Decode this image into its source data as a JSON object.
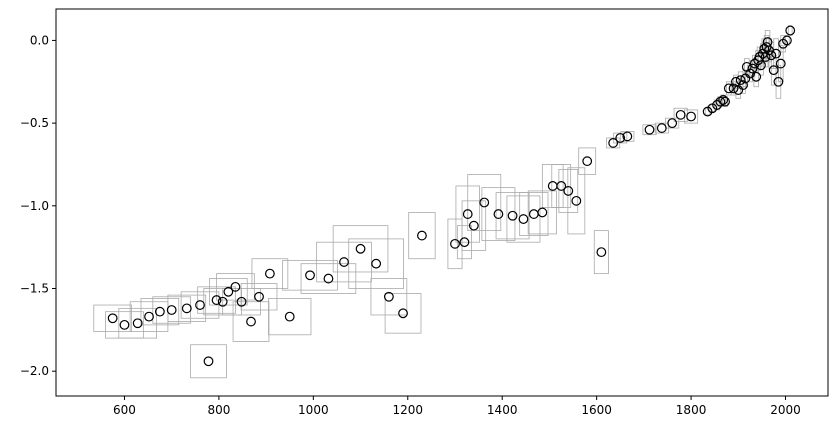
{
  "chart_data": {
    "type": "scatter",
    "title": "",
    "xlabel": "",
    "ylabel": "",
    "xlim": [
      455,
      2090
    ],
    "ylim": [
      -2.15,
      0.19
    ],
    "grid": false,
    "legend": "none",
    "x_ticks": [
      600,
      800,
      1000,
      1200,
      1400,
      1600,
      1800,
      2000
    ],
    "x_tick_labels": [
      "600",
      "800",
      "1000",
      "1200",
      "1400",
      "1600",
      "1800",
      "2000"
    ],
    "y_ticks": [
      0.0,
      -0.5,
      -1.0,
      -1.5,
      -2.0
    ],
    "y_tick_labels": [
      "0.0",
      "−0.5",
      "−1.0",
      "−1.5",
      "−2.0"
    ],
    "marker_color": "#000000",
    "box_color": "#aaaaaa",
    "points": [
      {
        "x": 575,
        "y": -1.68,
        "xerr": 40,
        "yerr": 0.08
      },
      {
        "x": 600,
        "y": -1.72,
        "xerr": 40,
        "yerr": 0.08
      },
      {
        "x": 628,
        "y": -1.71,
        "xerr": 40,
        "yerr": 0.09
      },
      {
        "x": 652,
        "y": -1.67,
        "xerr": 40,
        "yerr": 0.09
      },
      {
        "x": 675,
        "y": -1.64,
        "xerr": 40,
        "yerr": 0.08
      },
      {
        "x": 700,
        "y": -1.63,
        "xerr": 40,
        "yerr": 0.08
      },
      {
        "x": 732,
        "y": -1.62,
        "xerr": 40,
        "yerr": 0.08
      },
      {
        "x": 760,
        "y": -1.6,
        "xerr": 40,
        "yerr": 0.08
      },
      {
        "x": 778,
        "y": -1.94,
        "xerr": 38,
        "yerr": 0.1
      },
      {
        "x": 795,
        "y": -1.57,
        "xerr": 40,
        "yerr": 0.08
      },
      {
        "x": 808,
        "y": -1.58,
        "xerr": 40,
        "yerr": 0.08
      },
      {
        "x": 820,
        "y": -1.52,
        "xerr": 40,
        "yerr": 0.08
      },
      {
        "x": 835,
        "y": -1.49,
        "xerr": 40,
        "yerr": 0.08
      },
      {
        "x": 848,
        "y": -1.58,
        "xerr": 40,
        "yerr": 0.08
      },
      {
        "x": 868,
        "y": -1.7,
        "xerr": 38,
        "yerr": 0.12
      },
      {
        "x": 885,
        "y": -1.55,
        "xerr": 38,
        "yerr": 0.08
      },
      {
        "x": 908,
        "y": -1.41,
        "xerr": 38,
        "yerr": 0.09
      },
      {
        "x": 950,
        "y": -1.67,
        "xerr": 45,
        "yerr": 0.11
      },
      {
        "x": 993,
        "y": -1.42,
        "xerr": 58,
        "yerr": 0.09
      },
      {
        "x": 1032,
        "y": -1.44,
        "xerr": 58,
        "yerr": 0.09
      },
      {
        "x": 1065,
        "y": -1.34,
        "xerr": 58,
        "yerr": 0.12
      },
      {
        "x": 1100,
        "y": -1.26,
        "xerr": 58,
        "yerr": 0.14
      },
      {
        "x": 1133,
        "y": -1.35,
        "xerr": 58,
        "yerr": 0.15
      },
      {
        "x": 1160,
        "y": -1.55,
        "xerr": 38,
        "yerr": 0.11
      },
      {
        "x": 1190,
        "y": -1.65,
        "xerr": 38,
        "yerr": 0.12
      },
      {
        "x": 1230,
        "y": -1.18,
        "xerr": 28,
        "yerr": 0.14
      },
      {
        "x": 1300,
        "y": -1.23,
        "xerr": 15,
        "yerr": 0.15
      },
      {
        "x": 1320,
        "y": -1.22,
        "xerr": 15,
        "yerr": 0.1
      },
      {
        "x": 1327,
        "y": -1.05,
        "xerr": 25,
        "yerr": 0.17
      },
      {
        "x": 1340,
        "y": -1.12,
        "xerr": 25,
        "yerr": 0.15
      },
      {
        "x": 1362,
        "y": -0.98,
        "xerr": 35,
        "yerr": 0.17
      },
      {
        "x": 1392,
        "y": -1.05,
        "xerr": 35,
        "yerr": 0.16
      },
      {
        "x": 1422,
        "y": -1.06,
        "xerr": 35,
        "yerr": 0.14
      },
      {
        "x": 1445,
        "y": -1.08,
        "xerr": 35,
        "yerr": 0.14
      },
      {
        "x": 1467,
        "y": -1.05,
        "xerr": 30,
        "yerr": 0.13
      },
      {
        "x": 1485,
        "y": -1.04,
        "xerr": 30,
        "yerr": 0.13
      },
      {
        "x": 1507,
        "y": -0.88,
        "xerr": 22,
        "yerr": 0.13
      },
      {
        "x": 1525,
        "y": -0.88,
        "xerr": 20,
        "yerr": 0.13
      },
      {
        "x": 1540,
        "y": -0.91,
        "xerr": 20,
        "yerr": 0.13
      },
      {
        "x": 1557,
        "y": -0.97,
        "xerr": 18,
        "yerr": 0.2
      },
      {
        "x": 1580,
        "y": -0.73,
        "xerr": 18,
        "yerr": 0.08
      },
      {
        "x": 1610,
        "y": -1.28,
        "xerr": 15,
        "yerr": 0.13
      },
      {
        "x": 1635,
        "y": -0.62,
        "xerr": 14,
        "yerr": 0.03
      },
      {
        "x": 1650,
        "y": -0.59,
        "xerr": 14,
        "yerr": 0.03
      },
      {
        "x": 1665,
        "y": -0.58,
        "xerr": 14,
        "yerr": 0.03
      },
      {
        "x": 1712,
        "y": -0.54,
        "xerr": 14,
        "yerr": 0.03
      },
      {
        "x": 1738,
        "y": -0.53,
        "xerr": 14,
        "yerr": 0.03
      },
      {
        "x": 1760,
        "y": -0.5,
        "xerr": 14,
        "yerr": 0.03
      },
      {
        "x": 1778,
        "y": -0.45,
        "xerr": 14,
        "yerr": 0.04
      },
      {
        "x": 1800,
        "y": -0.46,
        "xerr": 14,
        "yerr": 0.04
      },
      {
        "x": 1835,
        "y": -0.43,
        "xerr": 5,
        "yerr": 0.02
      },
      {
        "x": 1845,
        "y": -0.41,
        "xerr": 5,
        "yerr": 0.02
      },
      {
        "x": 1855,
        "y": -0.39,
        "xerr": 5,
        "yerr": 0.03
      },
      {
        "x": 1862,
        "y": -0.37,
        "xerr": 5,
        "yerr": 0.03
      },
      {
        "x": 1868,
        "y": -0.36,
        "xerr": 5,
        "yerr": 0.03
      },
      {
        "x": 1872,
        "y": -0.37,
        "xerr": 5,
        "yerr": 0.03
      },
      {
        "x": 1880,
        "y": -0.29,
        "xerr": 5,
        "yerr": 0.04
      },
      {
        "x": 1890,
        "y": -0.29,
        "xerr": 5,
        "yerr": 0.04
      },
      {
        "x": 1895,
        "y": -0.25,
        "xerr": 5,
        "yerr": 0.04
      },
      {
        "x": 1900,
        "y": -0.3,
        "xerr": 5,
        "yerr": 0.05
      },
      {
        "x": 1905,
        "y": -0.24,
        "xerr": 5,
        "yerr": 0.05
      },
      {
        "x": 1910,
        "y": -0.27,
        "xerr": 5,
        "yerr": 0.05
      },
      {
        "x": 1915,
        "y": -0.23,
        "xerr": 5,
        "yerr": 0.05
      },
      {
        "x": 1918,
        "y": -0.16,
        "xerr": 5,
        "yerr": 0.05
      },
      {
        "x": 1925,
        "y": -0.2,
        "xerr": 5,
        "yerr": 0.05
      },
      {
        "x": 1930,
        "y": -0.17,
        "xerr": 5,
        "yerr": 0.05
      },
      {
        "x": 1935,
        "y": -0.14,
        "xerr": 5,
        "yerr": 0.05
      },
      {
        "x": 1938,
        "y": -0.22,
        "xerr": 5,
        "yerr": 0.06
      },
      {
        "x": 1942,
        "y": -0.12,
        "xerr": 5,
        "yerr": 0.06
      },
      {
        "x": 1945,
        "y": -0.1,
        "xerr": 5,
        "yerr": 0.06
      },
      {
        "x": 1948,
        "y": -0.15,
        "xerr": 5,
        "yerr": 0.06
      },
      {
        "x": 1952,
        "y": -0.08,
        "xerr": 5,
        "yerr": 0.06
      },
      {
        "x": 1955,
        "y": -0.05,
        "xerr": 5,
        "yerr": 0.06
      },
      {
        "x": 1958,
        "y": -0.1,
        "xerr": 5,
        "yerr": 0.06
      },
      {
        "x": 1960,
        "y": -0.04,
        "xerr": 5,
        "yerr": 0.07
      },
      {
        "x": 1962,
        "y": -0.01,
        "xerr": 5,
        "yerr": 0.07
      },
      {
        "x": 1965,
        "y": -0.06,
        "xerr": 5,
        "yerr": 0.07
      },
      {
        "x": 1970,
        "y": -0.09,
        "xerr": 5,
        "yerr": 0.08
      },
      {
        "x": 1975,
        "y": -0.18,
        "xerr": 5,
        "yerr": 0.09
      },
      {
        "x": 1980,
        "y": -0.08,
        "xerr": 5,
        "yerr": 0.09
      },
      {
        "x": 1985,
        "y": -0.25,
        "xerr": 5,
        "yerr": 0.1
      },
      {
        "x": 1990,
        "y": -0.14,
        "xerr": 5,
        "yerr": 0.11
      },
      {
        "x": 1995,
        "y": -0.02,
        "xerr": 5,
        "yerr": 0.05
      },
      {
        "x": 2003,
        "y": 0.0,
        "xerr": 5,
        "yerr": 0.03
      },
      {
        "x": 2010,
        "y": 0.06,
        "xerr": 4,
        "yerr": 0.03
      }
    ]
  }
}
